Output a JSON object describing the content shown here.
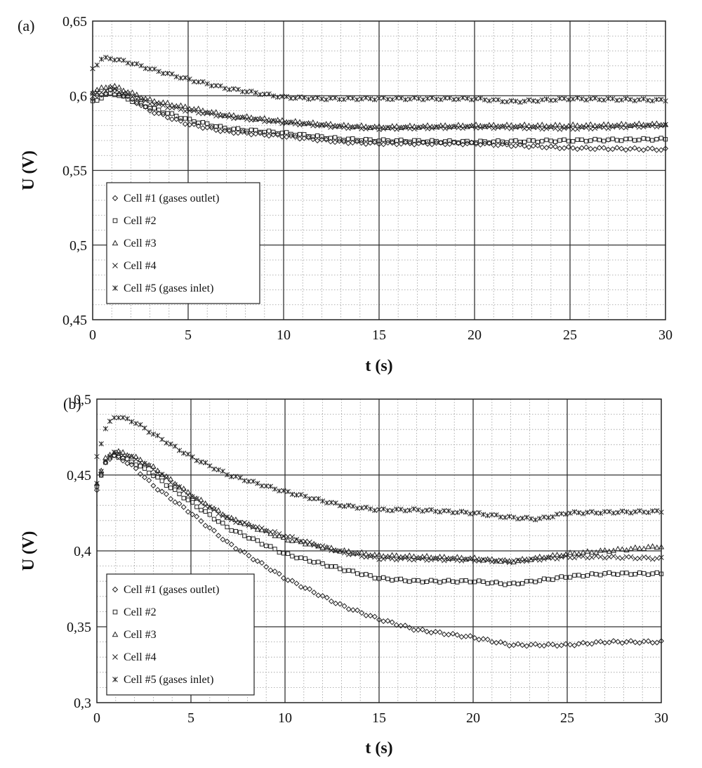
{
  "chart_data": [
    {
      "type": "scatter",
      "panel_label": "(a)",
      "xlabel": "t (s)",
      "ylabel": "U (V)",
      "xlim": [
        0,
        30
      ],
      "ylim": [
        0.45,
        0.65
      ],
      "xticks": [
        0,
        5,
        10,
        15,
        20,
        25,
        30
      ],
      "xtick_labels": [
        "0",
        "5",
        "10",
        "15",
        "20",
        "25",
        "30"
      ],
      "yticks": [
        0.45,
        0.5,
        0.55,
        0.6,
        0.65
      ],
      "ytick_labels": [
        "0,45",
        "0,5",
        "0,55",
        "0,6",
        "0,65"
      ],
      "grid": true,
      "legend_position": "bottom-left",
      "series": [
        {
          "name": "Cell #1 (gases outlet)",
          "marker": "diamond",
          "x": [
            0,
            1,
            2,
            3,
            5,
            7,
            10,
            13,
            15,
            20,
            25,
            30
          ],
          "y": [
            0.598,
            0.604,
            0.598,
            0.59,
            0.581,
            0.576,
            0.573,
            0.569,
            0.568,
            0.568,
            0.565,
            0.564
          ]
        },
        {
          "name": "Cell #2",
          "marker": "square",
          "x": [
            0,
            1,
            2,
            3,
            5,
            7,
            10,
            13,
            15,
            20,
            25,
            30
          ],
          "y": [
            0.596,
            0.602,
            0.597,
            0.592,
            0.584,
            0.578,
            0.575,
            0.571,
            0.57,
            0.569,
            0.57,
            0.571
          ]
        },
        {
          "name": "Cell #3",
          "marker": "triangle",
          "x": [
            0,
            1,
            2,
            3,
            5,
            7,
            10,
            13,
            15,
            20,
            25,
            30
          ],
          "y": [
            0.603,
            0.607,
            0.602,
            0.597,
            0.592,
            0.587,
            0.583,
            0.58,
            0.579,
            0.58,
            0.58,
            0.581
          ]
        },
        {
          "name": "Cell #4",
          "marker": "x",
          "x": [
            0,
            1,
            2,
            3,
            5,
            7,
            10,
            13,
            15,
            20,
            25,
            30
          ],
          "y": [
            0.601,
            0.605,
            0.6,
            0.595,
            0.59,
            0.586,
            0.582,
            0.579,
            0.578,
            0.579,
            0.578,
            0.58
          ]
        },
        {
          "name": "Cell #5 (gases inlet)",
          "marker": "star",
          "x": [
            0,
            0.5,
            1,
            2,
            3,
            5,
            7,
            10,
            12,
            15,
            20,
            22,
            25,
            30
          ],
          "y": [
            0.618,
            0.625,
            0.625,
            0.622,
            0.618,
            0.611,
            0.605,
            0.599,
            0.598,
            0.598,
            0.598,
            0.596,
            0.598,
            0.597
          ]
        }
      ]
    },
    {
      "type": "scatter",
      "panel_label": "(b)",
      "xlabel": "t (s)",
      "ylabel": "U (V)",
      "xlim": [
        0,
        30
      ],
      "ylim": [
        0.3,
        0.5
      ],
      "xticks": [
        0,
        5,
        10,
        15,
        20,
        25,
        30
      ],
      "xtick_labels": [
        "0",
        "5",
        "10",
        "15",
        "20",
        "25",
        "30"
      ],
      "yticks": [
        0.3,
        0.35,
        0.4,
        0.45,
        0.5
      ],
      "ytick_labels": [
        "0,3",
        "0,35",
        "0,4",
        "0,45",
        "0,5"
      ],
      "grid": true,
      "legend_position": "bottom-left",
      "series": [
        {
          "name": "Cell #1 (gases outlet)",
          "marker": "diamond",
          "x": [
            0,
            0.5,
            1,
            2,
            3,
            5,
            7,
            10,
            13,
            15,
            17,
            20,
            22,
            25,
            27,
            30
          ],
          "y": [
            0.44,
            0.46,
            0.463,
            0.455,
            0.443,
            0.425,
            0.405,
            0.382,
            0.364,
            0.355,
            0.348,
            0.343,
            0.338,
            0.338,
            0.34,
            0.34
          ]
        },
        {
          "name": "Cell #2",
          "marker": "square",
          "x": [
            0,
            0.5,
            1,
            2,
            3,
            5,
            7,
            10,
            13,
            15,
            17,
            20,
            22,
            25,
            27,
            30
          ],
          "y": [
            0.442,
            0.46,
            0.463,
            0.458,
            0.45,
            0.432,
            0.415,
            0.398,
            0.388,
            0.382,
            0.38,
            0.38,
            0.378,
            0.383,
            0.385,
            0.385
          ]
        },
        {
          "name": "Cell #3",
          "marker": "triangle",
          "x": [
            0,
            0.5,
            1,
            2,
            3,
            5,
            7,
            10,
            13,
            15,
            20,
            22,
            25,
            27,
            30
          ],
          "y": [
            0.445,
            0.462,
            0.466,
            0.462,
            0.455,
            0.437,
            0.422,
            0.408,
            0.4,
            0.397,
            0.395,
            0.393,
            0.398,
            0.4,
            0.403
          ]
        },
        {
          "name": "Cell #4",
          "marker": "x",
          "x": [
            0,
            0.5,
            1,
            2,
            3,
            5,
            7,
            10,
            13,
            15,
            20,
            22,
            25,
            27,
            30
          ],
          "y": [
            0.444,
            0.461,
            0.465,
            0.461,
            0.454,
            0.436,
            0.421,
            0.41,
            0.399,
            0.395,
            0.394,
            0.393,
            0.396,
            0.396,
            0.395
          ]
        },
        {
          "name": "Cell #5 (gases inlet)",
          "marker": "star",
          "x": [
            0,
            0.5,
            1,
            2,
            3,
            5,
            7,
            10,
            13,
            15,
            17,
            20,
            22,
            23.5,
            25,
            30
          ],
          "y": [
            0.462,
            0.482,
            0.489,
            0.485,
            0.477,
            0.462,
            0.45,
            0.439,
            0.43,
            0.427,
            0.427,
            0.425,
            0.422,
            0.421,
            0.425,
            0.426
          ]
        }
      ]
    }
  ]
}
